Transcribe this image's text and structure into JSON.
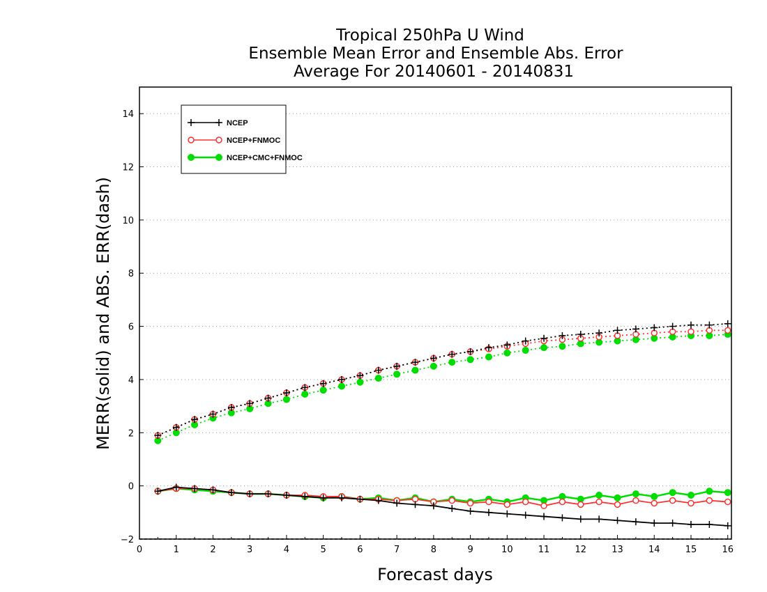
{
  "chart_data": {
    "type": "line",
    "title": [
      "Tropical 250hPa U Wind",
      "Ensemble Mean Error and Ensemble Abs. Error",
      "Average For 20140601 - 20140831"
    ],
    "xlabel": "Forecast days",
    "ylabel": "MERR(solid) and ABS. ERR(dash)",
    "xlim": [
      0,
      16.1
    ],
    "ylim": [
      -2,
      15
    ],
    "x_ticks": [
      0,
      1,
      2,
      3,
      4,
      5,
      6,
      7,
      8,
      9,
      10,
      11,
      12,
      13,
      14,
      15,
      16
    ],
    "y_ticks": [
      -2,
      0,
      2,
      4,
      6,
      8,
      10,
      12,
      14
    ],
    "grid": "horizontal dotted",
    "legend_position": "top-left",
    "x": [
      0.5,
      1,
      1.5,
      2,
      2.5,
      3,
      3.5,
      4,
      4.5,
      5,
      5.5,
      6,
      6.5,
      7,
      7.5,
      8,
      8.5,
      9,
      9.5,
      10,
      10.5,
      11,
      11.5,
      12,
      12.5,
      13,
      13.5,
      14,
      14.5,
      15,
      15.5,
      16
    ],
    "series": [
      {
        "name": "NCEP",
        "color": "#000000",
        "marker": "plus",
        "abs_error": [
          1.9,
          2.2,
          2.5,
          2.7,
          2.95,
          3.1,
          3.3,
          3.5,
          3.7,
          3.85,
          4.0,
          4.15,
          4.35,
          4.5,
          4.65,
          4.8,
          4.95,
          5.05,
          5.2,
          5.3,
          5.45,
          5.55,
          5.65,
          5.7,
          5.75,
          5.85,
          5.9,
          5.95,
          6.0,
          6.05,
          6.05,
          6.1
        ],
        "mean_error": [
          -0.2,
          -0.05,
          -0.1,
          -0.15,
          -0.25,
          -0.3,
          -0.3,
          -0.35,
          -0.4,
          -0.45,
          -0.45,
          -0.5,
          -0.55,
          -0.65,
          -0.7,
          -0.75,
          -0.85,
          -0.95,
          -1.0,
          -1.05,
          -1.1,
          -1.15,
          -1.2,
          -1.25,
          -1.25,
          -1.3,
          -1.35,
          -1.4,
          -1.4,
          -1.45,
          -1.45,
          -1.5
        ]
      },
      {
        "name": "NCEP+FNMOC",
        "color": "#ff3030",
        "marker": "open-circle",
        "abs_error": [
          1.9,
          2.2,
          2.5,
          2.7,
          2.95,
          3.1,
          3.3,
          3.5,
          3.7,
          3.85,
          4.0,
          4.15,
          4.35,
          4.5,
          4.65,
          4.8,
          4.95,
          5.05,
          5.15,
          5.25,
          5.35,
          5.45,
          5.5,
          5.55,
          5.6,
          5.65,
          5.7,
          5.75,
          5.8,
          5.8,
          5.85,
          5.85
        ],
        "mean_error": [
          -0.2,
          -0.1,
          -0.1,
          -0.15,
          -0.25,
          -0.3,
          -0.3,
          -0.35,
          -0.35,
          -0.4,
          -0.4,
          -0.5,
          -0.5,
          -0.55,
          -0.5,
          -0.6,
          -0.55,
          -0.65,
          -0.6,
          -0.7,
          -0.6,
          -0.75,
          -0.6,
          -0.7,
          -0.6,
          -0.7,
          -0.55,
          -0.65,
          -0.55,
          -0.65,
          -0.55,
          -0.6
        ]
      },
      {
        "name": "NCEP+CMC+FNMOC",
        "color": "#00dd00",
        "marker": "filled-circle",
        "abs_error": [
          1.7,
          2.0,
          2.3,
          2.55,
          2.75,
          2.9,
          3.1,
          3.25,
          3.45,
          3.6,
          3.75,
          3.9,
          4.05,
          4.2,
          4.35,
          4.5,
          4.65,
          4.75,
          4.85,
          5.0,
          5.1,
          5.2,
          5.25,
          5.35,
          5.4,
          5.45,
          5.5,
          5.55,
          5.6,
          5.65,
          5.65,
          5.7
        ],
        "mean_error": [
          -0.2,
          -0.1,
          -0.15,
          -0.2,
          -0.25,
          -0.3,
          -0.3,
          -0.35,
          -0.4,
          -0.45,
          -0.4,
          -0.5,
          -0.45,
          -0.55,
          -0.45,
          -0.6,
          -0.5,
          -0.6,
          -0.5,
          -0.6,
          -0.45,
          -0.55,
          -0.4,
          -0.5,
          -0.35,
          -0.45,
          -0.3,
          -0.4,
          -0.25,
          -0.35,
          -0.2,
          -0.25
        ]
      }
    ]
  }
}
